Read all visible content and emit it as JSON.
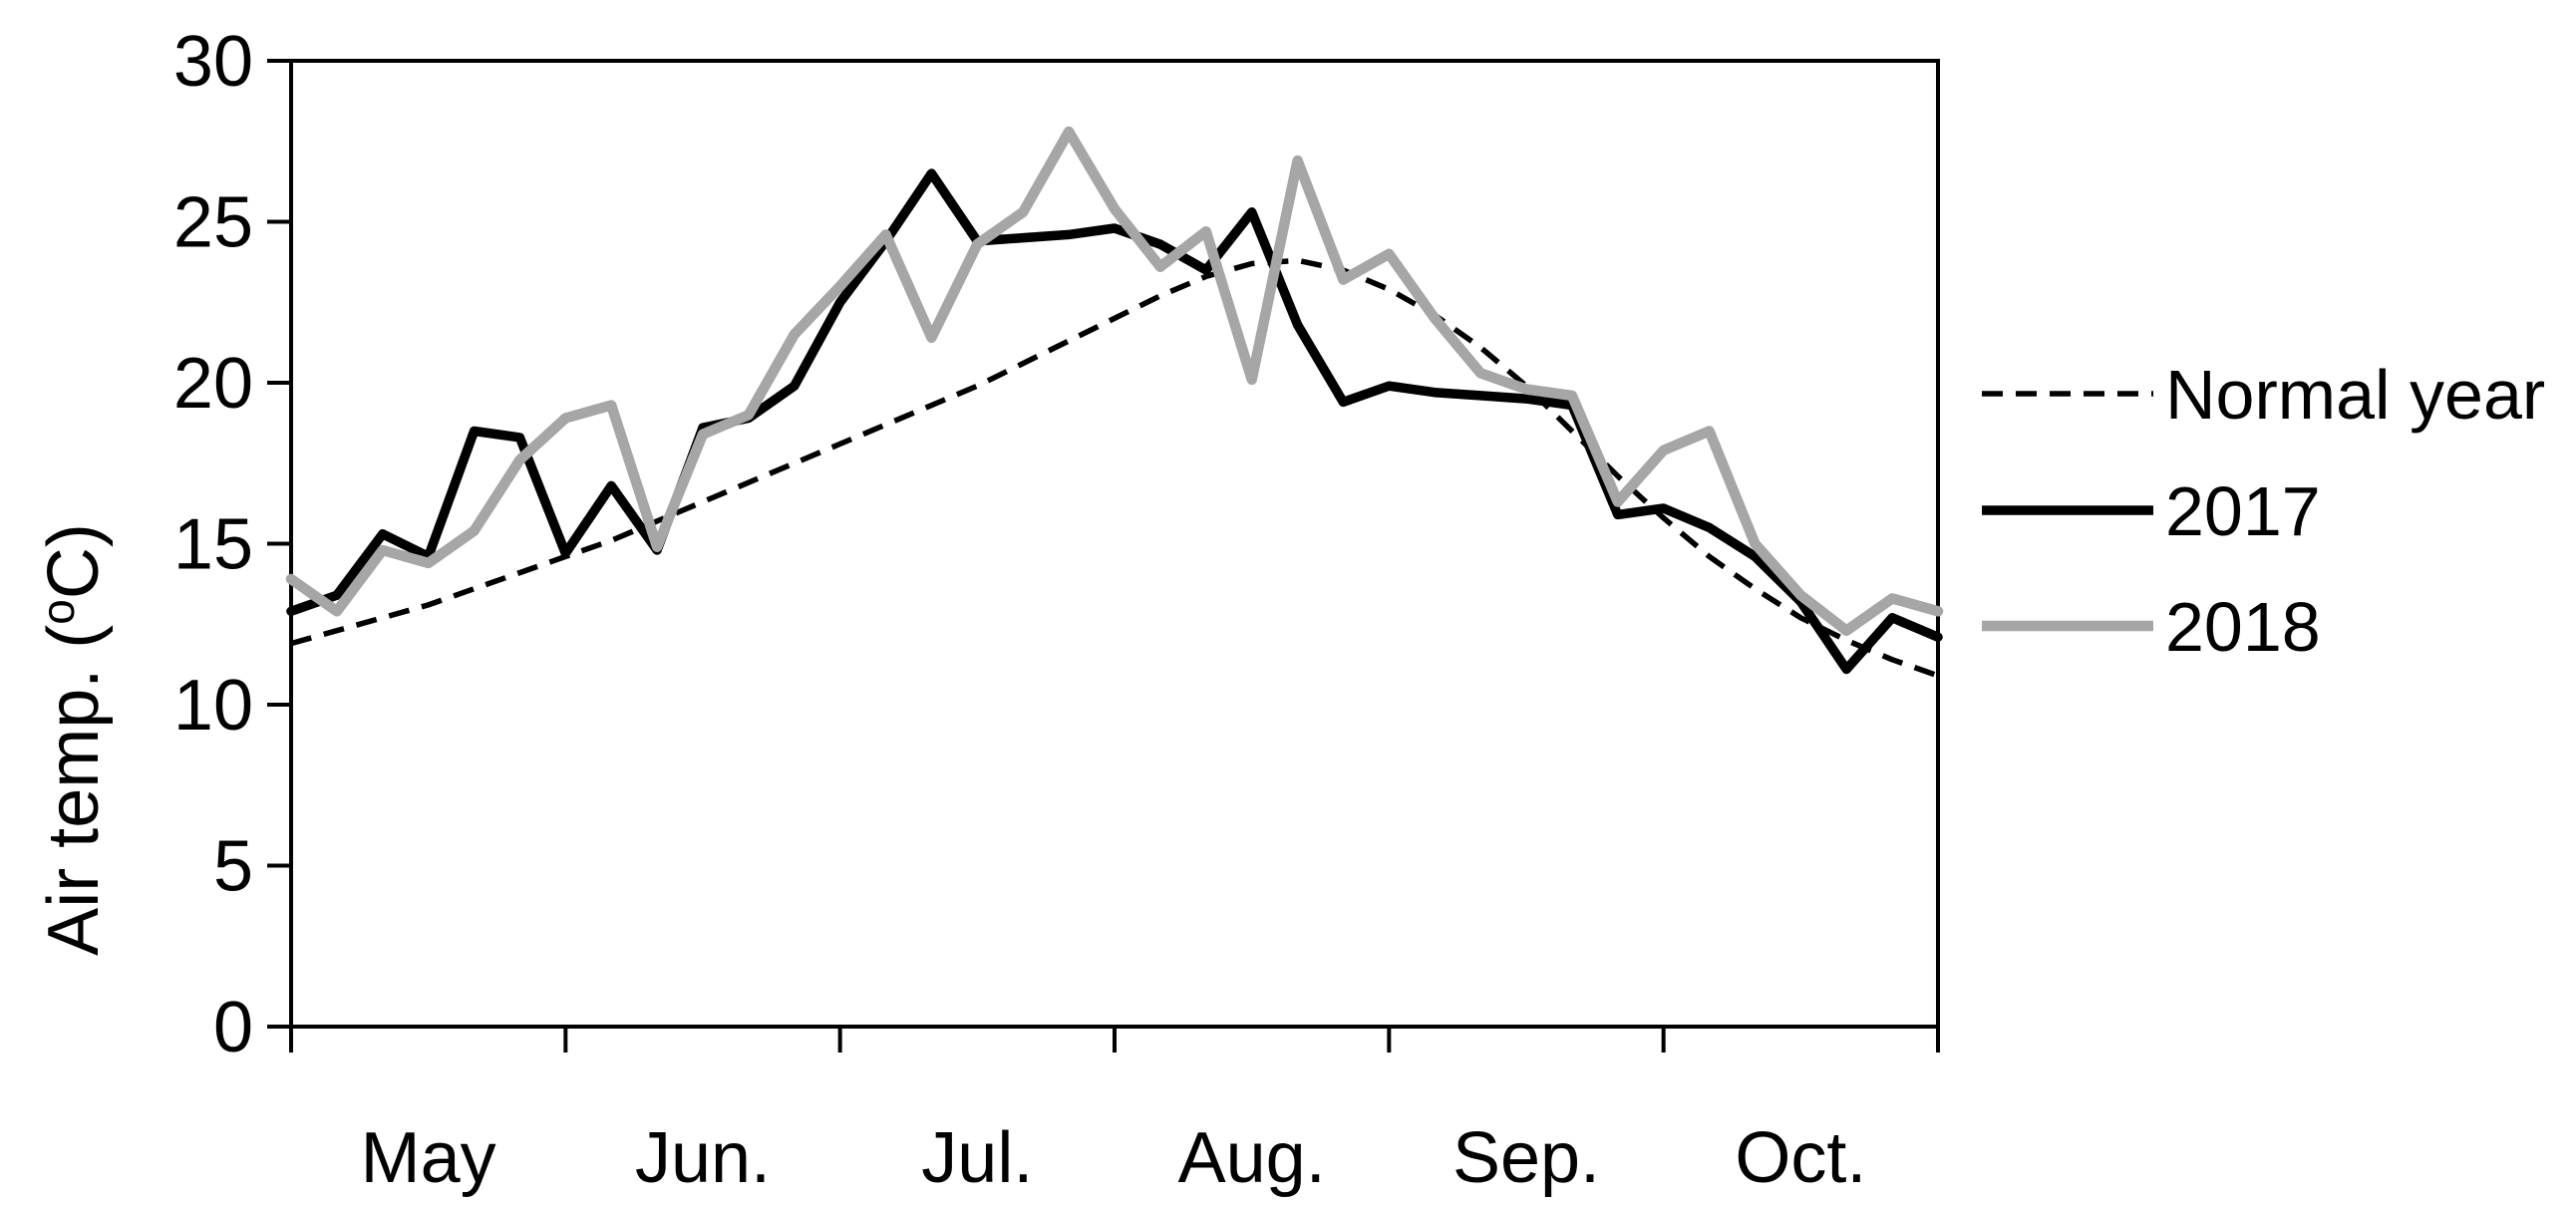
{
  "chart_data": {
    "type": "line",
    "ylabel": "Air temp. (°C)",
    "ylabel_parts": {
      "prefix": "Air temp. (",
      "degree_symbol": "o",
      "suffix": "C)"
    },
    "x_tick_labels": [
      "May",
      "Jun.",
      "Jul.",
      "Aug.",
      "Sep.",
      "Oct."
    ],
    "y_axis": {
      "ticks": [
        0,
        5,
        10,
        15,
        20,
        25,
        30
      ],
      "range": [
        0,
        30
      ]
    },
    "grid": false,
    "legend_position": "right-middle",
    "colors": {
      "black": "#000000",
      "gray_series": "#a6a6a6",
      "background": "#ffffff"
    },
    "series": [
      {
        "name": "Normal year",
        "line_style": "dashed",
        "color": "#000000",
        "stroke_width": 5.5,
        "values": [
          11.9,
          12.3,
          12.7,
          13.1,
          13.6,
          14.1,
          14.6,
          15.1,
          15.7,
          16.3,
          16.9,
          17.5,
          18.1,
          18.7,
          19.3,
          19.9,
          20.6,
          21.3,
          22.0,
          22.7,
          23.3,
          23.7,
          23.8,
          23.5,
          22.9,
          22.1,
          21.1,
          19.9,
          18.5,
          17.1,
          15.8,
          14.6,
          13.6,
          12.7,
          12.0,
          11.4,
          10.9
        ]
      },
      {
        "name": "2017",
        "line_style": "solid",
        "color": "#000000",
        "stroke_width": 9.5,
        "values": [
          12.9,
          13.4,
          15.3,
          14.6,
          18.5,
          18.3,
          14.7,
          16.8,
          14.8,
          18.6,
          18.9,
          19.9,
          22.5,
          24.4,
          26.5,
          24.4,
          24.5,
          24.6,
          24.8,
          24.3,
          23.5,
          25.3,
          21.8,
          19.4,
          19.9,
          19.7,
          19.6,
          19.5,
          19.3,
          15.9,
          16.1,
          15.5,
          14.6,
          13.2,
          11.1,
          12.7,
          12.1
        ]
      },
      {
        "name": "2018",
        "line_style": "solid",
        "color": "#a6a6a6",
        "stroke_width": 10.5,
        "values": [
          13.9,
          12.9,
          14.8,
          14.4,
          15.4,
          17.6,
          18.9,
          19.3,
          14.9,
          18.4,
          19.0,
          21.5,
          23.0,
          24.6,
          21.4,
          24.3,
          25.3,
          27.8,
          25.4,
          23.6,
          24.7,
          20.1,
          26.9,
          23.2,
          24.0,
          22.0,
          20.3,
          19.8,
          19.6,
          16.3,
          17.9,
          18.5,
          15.0,
          13.4,
          12.3,
          13.3,
          12.9
        ]
      }
    ]
  }
}
